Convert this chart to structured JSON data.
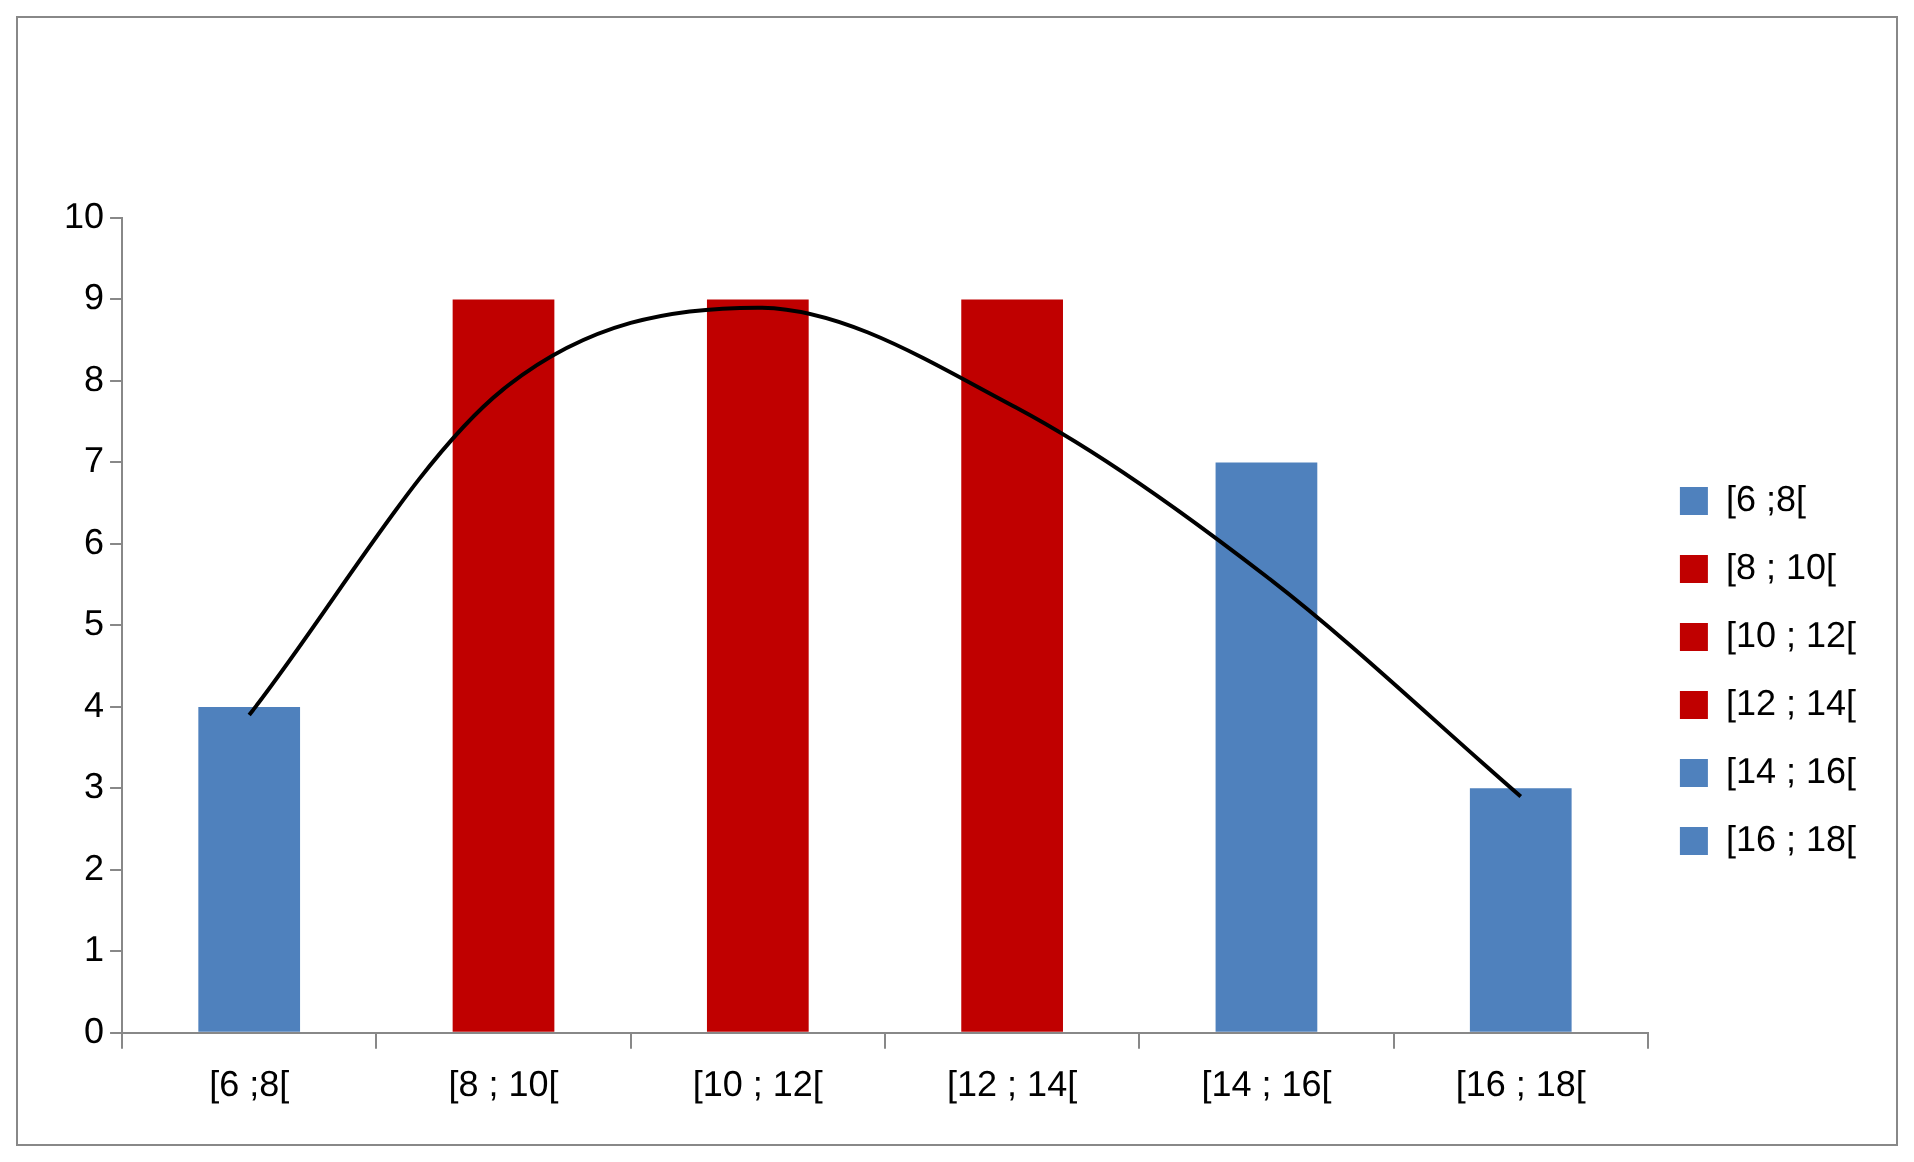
{
  "chart_data": {
    "type": "bar",
    "categories": [
      "[6 ;8[",
      "[8 ; 10[",
      "[10 ; 12[",
      "[12 ; 14[",
      "[14 ; 16[",
      "[16 ; 18["
    ],
    "stacked": true,
    "series": [
      {
        "name": "[6 ;8[",
        "color": "#4f81bd",
        "values": [
          4,
          null,
          null,
          null,
          null,
          null
        ]
      },
      {
        "name": "[8 ; 10[",
        "color": "#c00000",
        "values": [
          null,
          9,
          null,
          null,
          null,
          null
        ]
      },
      {
        "name": "[10 ; 12[",
        "color": "#c00000",
        "values": [
          null,
          null,
          9,
          null,
          null,
          null
        ]
      },
      {
        "name": "[12 ; 14[",
        "color": "#c00000",
        "values": [
          null,
          null,
          null,
          9,
          null,
          null
        ]
      },
      {
        "name": "[14 ; 16[",
        "color": "#4f81bd",
        "values": [
          null,
          null,
          null,
          null,
          7,
          null
        ]
      },
      {
        "name": "[16 ; 18[",
        "color": "#4f81bd",
        "values": [
          null,
          null,
          null,
          null,
          null,
          3
        ]
      },
      {
        "type": "line",
        "values": [
          3.9,
          7.9,
          8.9,
          7.7,
          5.6,
          2.9
        ],
        "color": "#000000"
      }
    ],
    "ylim": [
      0,
      10
    ],
    "yticks": [
      0,
      1,
      2,
      3,
      4,
      5,
      6,
      7,
      8,
      9,
      10
    ],
    "grid": false,
    "legend": "right",
    "marker": "none",
    "line_style": "solid"
  }
}
